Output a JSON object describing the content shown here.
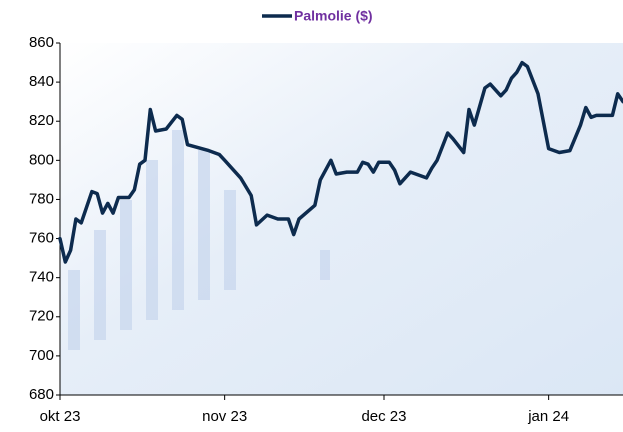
{
  "chart_data": {
    "type": "line",
    "legend_position": "top",
    "xlim": [
      0,
      106
    ],
    "xticks": [
      {
        "value": 0,
        "label": "okt 23"
      },
      {
        "value": 31,
        "label": "nov 23"
      },
      {
        "value": 61,
        "label": "dec 23"
      },
      {
        "value": 92,
        "label": "jan 24"
      }
    ],
    "ylim": [
      680,
      860
    ],
    "yticks": [
      680,
      700,
      720,
      740,
      760,
      780,
      800,
      820,
      840,
      860
    ],
    "grid": false,
    "x": [
      0,
      1,
      2,
      3,
      4,
      6,
      7,
      8,
      9,
      10,
      11,
      13,
      14,
      15,
      16,
      17,
      18,
      20,
      22,
      23,
      24,
      28,
      30,
      31,
      34,
      36,
      37,
      39,
      41,
      43,
      44,
      45,
      48,
      49,
      51,
      52,
      54,
      56,
      57,
      58,
      59,
      60,
      62,
      63,
      64,
      66,
      69,
      70,
      71,
      73,
      74,
      76,
      77,
      78,
      80,
      81,
      83,
      84,
      85,
      86,
      87,
      88,
      90,
      91,
      92,
      94,
      96,
      98,
      99,
      100,
      101,
      104,
      105,
      106
    ],
    "series": [
      {
        "name": "Palmolie ($)",
        "color": "#0d2b4e",
        "values": [
          760,
          748,
          754,
          770,
          768,
          784,
          783,
          773,
          778,
          773,
          781,
          781,
          785,
          798,
          800,
          826,
          815,
          816,
          823,
          821,
          808,
          805,
          803,
          800,
          791,
          782,
          767,
          772,
          770,
          770,
          762,
          770,
          777,
          790,
          800,
          793,
          794,
          794,
          799,
          798,
          794,
          799,
          799,
          795,
          788,
          794,
          791,
          796,
          800,
          814,
          811,
          804,
          826,
          818,
          837,
          839,
          833,
          836,
          842,
          845,
          850,
          848,
          834,
          820,
          806,
          804,
          805,
          818,
          827,
          822,
          823,
          823,
          834,
          830
        ]
      }
    ]
  }
}
